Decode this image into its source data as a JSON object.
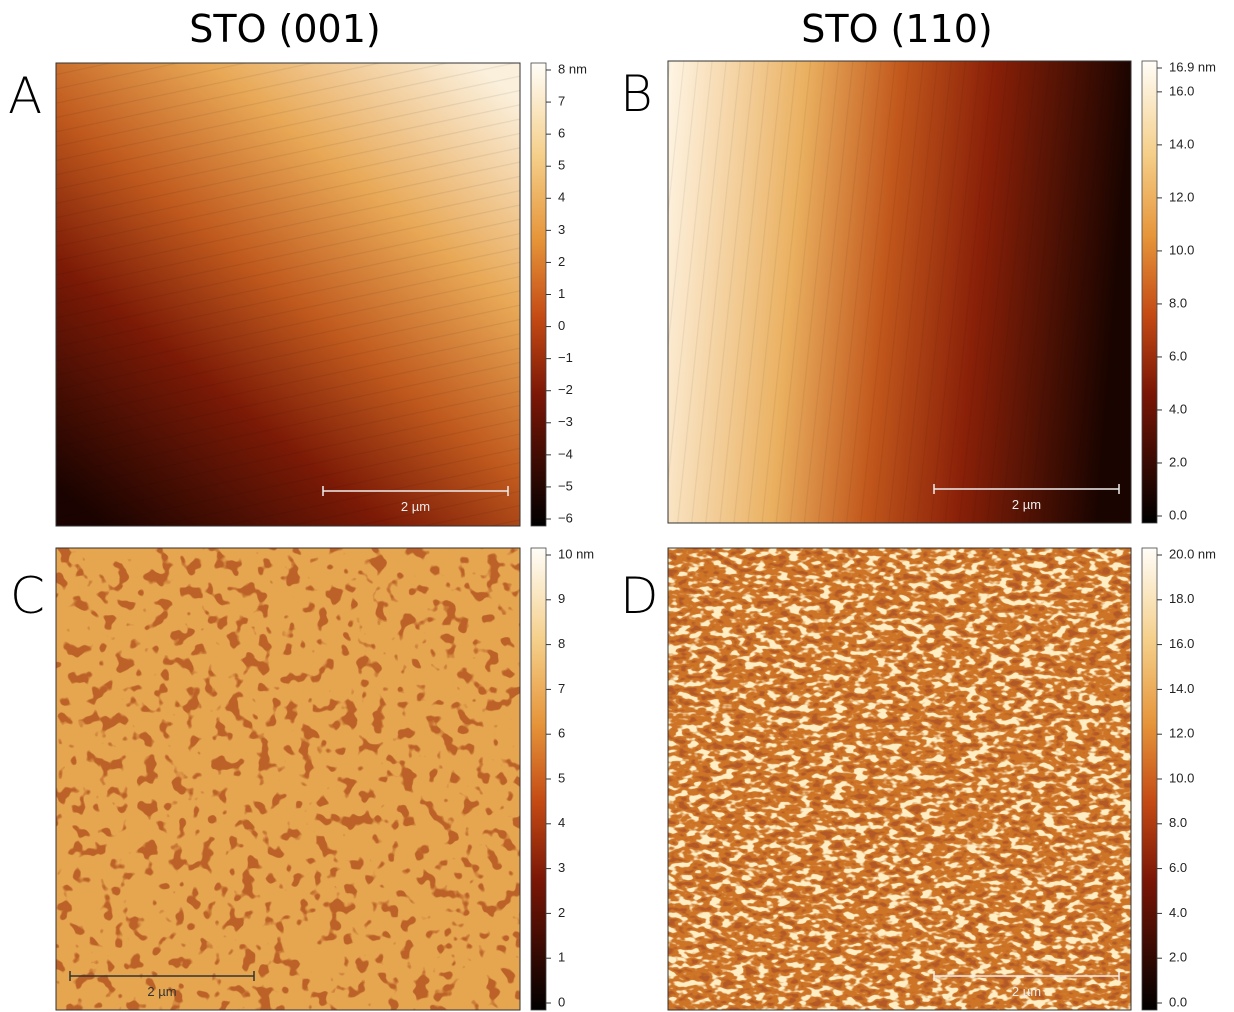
{
  "columns": [
    "STO (001)",
    "STO (110)"
  ],
  "panels": [
    {
      "label": "A",
      "scale_bar": "2 µm",
      "colorbar": {
        "range": [
          -6,
          8
        ],
        "ticks": [
          {
            "value": 8,
            "label": "8 nm"
          },
          7,
          6,
          5,
          4,
          3,
          2,
          1,
          0,
          {
            "value": -1,
            "label": "−1"
          },
          {
            "value": -2,
            "label": "−2"
          },
          {
            "value": -3,
            "label": "−3"
          },
          {
            "value": -4,
            "label": "−4"
          },
          {
            "value": -5,
            "label": "−5"
          },
          {
            "value": -6,
            "label": "−6"
          }
        ]
      }
    },
    {
      "label": "B",
      "scale_bar": "2 µm",
      "colorbar": {
        "range": [
          0,
          16.9
        ],
        "ticks": [
          {
            "value": 16.9,
            "label": "16.9 nm"
          },
          {
            "value": 16,
            "label": "16.0"
          },
          {
            "value": 14,
            "label": "14.0"
          },
          {
            "value": 12,
            "label": "12.0"
          },
          {
            "value": 10,
            "label": "10.0"
          },
          {
            "value": 8,
            "label": "8.0"
          },
          {
            "value": 6,
            "label": "6.0"
          },
          {
            "value": 4,
            "label": "4.0"
          },
          {
            "value": 2,
            "label": "2.0"
          },
          {
            "value": 0,
            "label": "0.0"
          }
        ]
      }
    },
    {
      "label": "C",
      "scale_bar": "2 µm",
      "colorbar": {
        "range": [
          0,
          10
        ],
        "ticks": [
          {
            "value": 10,
            "label": "10 nm"
          },
          9,
          8,
          7,
          6,
          5,
          4,
          3,
          2,
          1,
          0
        ]
      }
    },
    {
      "label": "D",
      "scale_bar": "2 µm",
      "colorbar": {
        "range": [
          0,
          20
        ],
        "ticks": [
          {
            "value": 20,
            "label": "20.0 nm"
          },
          {
            "value": 18,
            "label": "18.0"
          },
          {
            "value": 16,
            "label": "16.0"
          },
          {
            "value": 14,
            "label": "14.0"
          },
          {
            "value": 12,
            "label": "12.0"
          },
          {
            "value": 10,
            "label": "10.0"
          },
          {
            "value": 8,
            "label": "8.0"
          },
          {
            "value": 6,
            "label": "6.0"
          },
          {
            "value": 4,
            "label": "4.0"
          },
          {
            "value": 2,
            "label": "2.0"
          },
          {
            "value": 0,
            "label": "0.0"
          }
        ]
      }
    }
  ]
}
